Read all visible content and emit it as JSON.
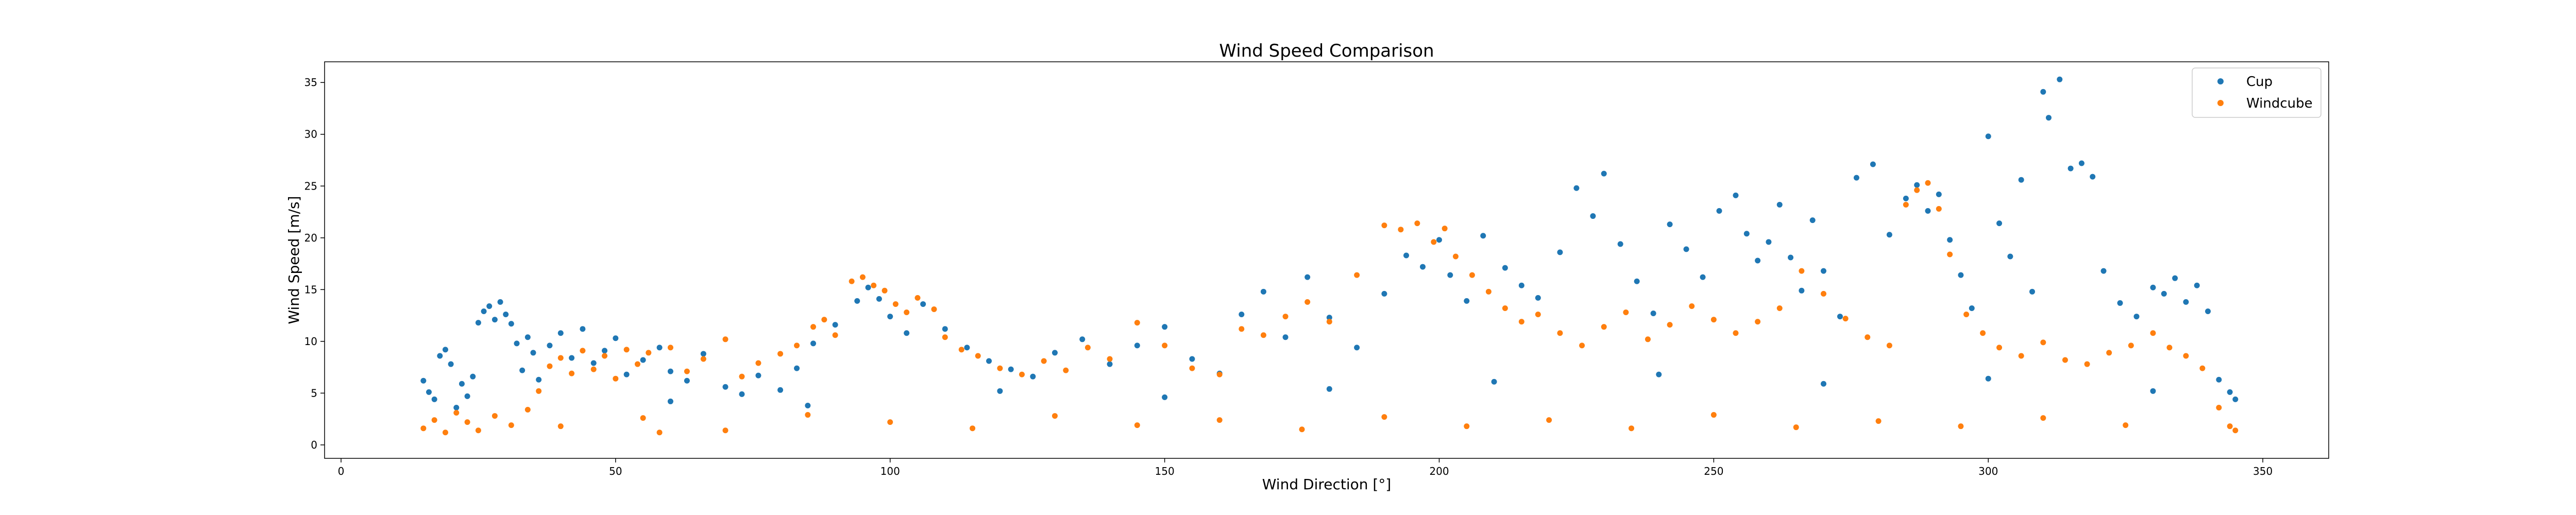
{
  "chart_data": {
    "type": "scatter",
    "title": "Wind Speed Comparison",
    "xlabel": "Wind Direction [°]",
    "ylabel": "Wind Speed [m/s]",
    "xlim": [
      -3,
      362
    ],
    "ylim": [
      -1.3,
      37
    ],
    "xticks": [
      0,
      50,
      100,
      150,
      200,
      250,
      300,
      350
    ],
    "yticks": [
      0,
      5,
      10,
      15,
      20,
      25,
      30,
      35
    ],
    "legend_position": "top-right",
    "grid": false,
    "series": [
      {
        "name": "Cup",
        "color": "#1f77b4",
        "points": [
          [
            15,
            6.2
          ],
          [
            16,
            5.1
          ],
          [
            17,
            4.4
          ],
          [
            18,
            8.6
          ],
          [
            19,
            9.2
          ],
          [
            20,
            7.8
          ],
          [
            21,
            3.6
          ],
          [
            22,
            5.9
          ],
          [
            23,
            4.7
          ],
          [
            24,
            6.6
          ],
          [
            25,
            11.8
          ],
          [
            26,
            12.9
          ],
          [
            27,
            13.4
          ],
          [
            28,
            12.1
          ],
          [
            29,
            13.8
          ],
          [
            30,
            12.6
          ],
          [
            31,
            11.7
          ],
          [
            32,
            9.8
          ],
          [
            33,
            7.2
          ],
          [
            34,
            10.4
          ],
          [
            35,
            8.9
          ],
          [
            36,
            6.3
          ],
          [
            38,
            9.6
          ],
          [
            40,
            10.8
          ],
          [
            42,
            8.4
          ],
          [
            44,
            11.2
          ],
          [
            46,
            7.9
          ],
          [
            48,
            9.1
          ],
          [
            50,
            10.3
          ],
          [
            52,
            6.8
          ],
          [
            55,
            8.2
          ],
          [
            58,
            9.4
          ],
          [
            60,
            7.1
          ],
          [
            63,
            6.2
          ],
          [
            66,
            8.8
          ],
          [
            70,
            5.6
          ],
          [
            73,
            4.9
          ],
          [
            76,
            6.7
          ],
          [
            80,
            5.3
          ],
          [
            83,
            7.4
          ],
          [
            86,
            9.8
          ],
          [
            90,
            11.6
          ],
          [
            94,
            13.9
          ],
          [
            96,
            15.2
          ],
          [
            98,
            14.1
          ],
          [
            100,
            12.4
          ],
          [
            103,
            10.8
          ],
          [
            106,
            13.6
          ],
          [
            110,
            11.2
          ],
          [
            114,
            9.4
          ],
          [
            118,
            8.1
          ],
          [
            122,
            7.3
          ],
          [
            126,
            6.6
          ],
          [
            130,
            8.9
          ],
          [
            135,
            10.2
          ],
          [
            140,
            7.8
          ],
          [
            145,
            9.6
          ],
          [
            150,
            11.4
          ],
          [
            155,
            8.3
          ],
          [
            160,
            6.9
          ],
          [
            164,
            12.6
          ],
          [
            168,
            14.8
          ],
          [
            172,
            10.4
          ],
          [
            176,
            16.2
          ],
          [
            180,
            12.3
          ],
          [
            185,
            9.4
          ],
          [
            190,
            14.6
          ],
          [
            194,
            18.3
          ],
          [
            197,
            17.2
          ],
          [
            200,
            19.8
          ],
          [
            202,
            16.4
          ],
          [
            205,
            13.9
          ],
          [
            208,
            20.2
          ],
          [
            212,
            17.1
          ],
          [
            215,
            15.4
          ],
          [
            218,
            14.2
          ],
          [
            222,
            18.6
          ],
          [
            225,
            24.8
          ],
          [
            228,
            22.1
          ],
          [
            230,
            26.2
          ],
          [
            233,
            19.4
          ],
          [
            236,
            15.8
          ],
          [
            239,
            12.7
          ],
          [
            242,
            21.3
          ],
          [
            245,
            18.9
          ],
          [
            248,
            16.2
          ],
          [
            251,
            22.6
          ],
          [
            254,
            24.1
          ],
          [
            256,
            20.4
          ],
          [
            258,
            17.8
          ],
          [
            260,
            19.6
          ],
          [
            262,
            23.2
          ],
          [
            264,
            18.1
          ],
          [
            266,
            14.9
          ],
          [
            268,
            21.7
          ],
          [
            270,
            16.8
          ],
          [
            273,
            12.4
          ],
          [
            276,
            25.8
          ],
          [
            279,
            27.1
          ],
          [
            282,
            20.3
          ],
          [
            285,
            23.8
          ],
          [
            287,
            25.1
          ],
          [
            289,
            22.6
          ],
          [
            291,
            24.2
          ],
          [
            293,
            19.8
          ],
          [
            295,
            16.4
          ],
          [
            297,
            13.2
          ],
          [
            300,
            29.8
          ],
          [
            302,
            21.4
          ],
          [
            304,
            18.2
          ],
          [
            306,
            25.6
          ],
          [
            308,
            14.8
          ],
          [
            310,
            34.1
          ],
          [
            311,
            31.6
          ],
          [
            313,
            35.3
          ],
          [
            315,
            26.7
          ],
          [
            317,
            27.2
          ],
          [
            319,
            25.9
          ],
          [
            321,
            16.8
          ],
          [
            324,
            13.7
          ],
          [
            327,
            12.4
          ],
          [
            330,
            15.2
          ],
          [
            332,
            14.6
          ],
          [
            334,
            16.1
          ],
          [
            336,
            13.8
          ],
          [
            338,
            15.4
          ],
          [
            340,
            12.9
          ],
          [
            342,
            6.3
          ],
          [
            344,
            5.1
          ],
          [
            345,
            4.4
          ],
          [
            60,
            4.2
          ],
          [
            85,
            3.8
          ],
          [
            120,
            5.2
          ],
          [
            150,
            4.6
          ],
          [
            180,
            5.4
          ],
          [
            210,
            6.1
          ],
          [
            240,
            6.8
          ],
          [
            270,
            5.9
          ],
          [
            300,
            6.4
          ],
          [
            330,
            5.2
          ]
        ]
      },
      {
        "name": "Windcube",
        "color": "#ff7f0e",
        "points": [
          [
            15,
            1.6
          ],
          [
            17,
            2.4
          ],
          [
            19,
            1.2
          ],
          [
            21,
            3.1
          ],
          [
            23,
            2.2
          ],
          [
            25,
            1.4
          ],
          [
            28,
            2.8
          ],
          [
            31,
            1.9
          ],
          [
            34,
            3.4
          ],
          [
            36,
            5.2
          ],
          [
            38,
            7.6
          ],
          [
            40,
            8.4
          ],
          [
            42,
            6.9
          ],
          [
            44,
            9.1
          ],
          [
            46,
            7.3
          ],
          [
            48,
            8.6
          ],
          [
            50,
            6.4
          ],
          [
            52,
            9.2
          ],
          [
            54,
            7.8
          ],
          [
            56,
            8.9
          ],
          [
            58,
            1.2
          ],
          [
            60,
            9.4
          ],
          [
            63,
            7.1
          ],
          [
            66,
            8.3
          ],
          [
            70,
            10.2
          ],
          [
            73,
            6.6
          ],
          [
            76,
            7.9
          ],
          [
            80,
            8.8
          ],
          [
            83,
            9.6
          ],
          [
            86,
            11.4
          ],
          [
            88,
            12.1
          ],
          [
            90,
            10.6
          ],
          [
            93,
            15.8
          ],
          [
            95,
            16.2
          ],
          [
            97,
            15.4
          ],
          [
            99,
            14.9
          ],
          [
            101,
            13.6
          ],
          [
            103,
            12.8
          ],
          [
            105,
            14.2
          ],
          [
            108,
            13.1
          ],
          [
            110,
            10.4
          ],
          [
            113,
            9.2
          ],
          [
            116,
            8.6
          ],
          [
            120,
            7.4
          ],
          [
            124,
            6.8
          ],
          [
            128,
            8.1
          ],
          [
            132,
            7.2
          ],
          [
            136,
            9.4
          ],
          [
            140,
            8.3
          ],
          [
            145,
            11.8
          ],
          [
            150,
            9.6
          ],
          [
            155,
            7.4
          ],
          [
            160,
            6.8
          ],
          [
            164,
            11.2
          ],
          [
            168,
            10.6
          ],
          [
            172,
            12.4
          ],
          [
            176,
            13.8
          ],
          [
            180,
            11.9
          ],
          [
            185,
            16.4
          ],
          [
            190,
            21.2
          ],
          [
            193,
            20.8
          ],
          [
            196,
            21.4
          ],
          [
            199,
            19.6
          ],
          [
            201,
            20.9
          ],
          [
            203,
            18.2
          ],
          [
            206,
            16.4
          ],
          [
            209,
            14.8
          ],
          [
            212,
            13.2
          ],
          [
            215,
            11.9
          ],
          [
            218,
            12.6
          ],
          [
            222,
            10.8
          ],
          [
            226,
            9.6
          ],
          [
            230,
            11.4
          ],
          [
            234,
            12.8
          ],
          [
            238,
            10.2
          ],
          [
            242,
            11.6
          ],
          [
            246,
            13.4
          ],
          [
            250,
            12.1
          ],
          [
            254,
            10.8
          ],
          [
            258,
            11.9
          ],
          [
            262,
            13.2
          ],
          [
            266,
            16.8
          ],
          [
            270,
            14.6
          ],
          [
            274,
            12.2
          ],
          [
            278,
            10.4
          ],
          [
            282,
            9.6
          ],
          [
            285,
            23.2
          ],
          [
            287,
            24.6
          ],
          [
            289,
            25.3
          ],
          [
            291,
            22.8
          ],
          [
            293,
            18.4
          ],
          [
            296,
            12.6
          ],
          [
            299,
            10.8
          ],
          [
            302,
            9.4
          ],
          [
            306,
            8.6
          ],
          [
            310,
            9.9
          ],
          [
            314,
            8.2
          ],
          [
            318,
            7.8
          ],
          [
            322,
            8.9
          ],
          [
            326,
            9.6
          ],
          [
            330,
            10.8
          ],
          [
            333,
            9.4
          ],
          [
            336,
            8.6
          ],
          [
            339,
            7.4
          ],
          [
            342,
            3.6
          ],
          [
            344,
            1.8
          ],
          [
            345,
            1.4
          ],
          [
            40,
            1.8
          ],
          [
            55,
            2.6
          ],
          [
            70,
            1.4
          ],
          [
            85,
            2.9
          ],
          [
            100,
            2.2
          ],
          [
            115,
            1.6
          ],
          [
            130,
            2.8
          ],
          [
            145,
            1.9
          ],
          [
            160,
            2.4
          ],
          [
            175,
            1.5
          ],
          [
            190,
            2.7
          ],
          [
            205,
            1.8
          ],
          [
            220,
            2.4
          ],
          [
            235,
            1.6
          ],
          [
            250,
            2.9
          ],
          [
            265,
            1.7
          ],
          [
            280,
            2.3
          ],
          [
            295,
            1.8
          ],
          [
            310,
            2.6
          ],
          [
            325,
            1.9
          ]
        ]
      }
    ]
  }
}
